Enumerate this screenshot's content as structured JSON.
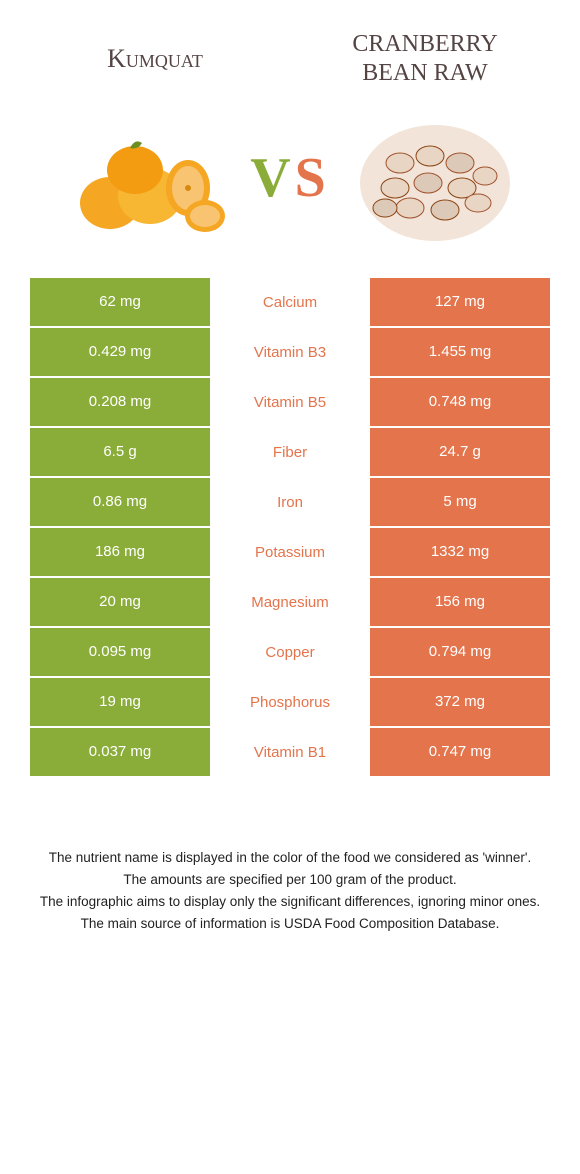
{
  "header": {
    "left_title": "Kumquat",
    "right_title": "CRANBERRY BEAN RAW",
    "vs": "VS"
  },
  "colors": {
    "left": "#8aad3a",
    "right": "#e4744c",
    "left_title": "#554444",
    "right_title": "#554444"
  },
  "rows": [
    {
      "left": "62 mg",
      "label": "Calcium",
      "right": "127 mg",
      "winner": "right"
    },
    {
      "left": "0.429 mg",
      "label": "Vitamin B3",
      "right": "1.455 mg",
      "winner": "right"
    },
    {
      "left": "0.208 mg",
      "label": "Vitamin B5",
      "right": "0.748 mg",
      "winner": "right"
    },
    {
      "left": "6.5 g",
      "label": "Fiber",
      "right": "24.7 g",
      "winner": "right"
    },
    {
      "left": "0.86 mg",
      "label": "Iron",
      "right": "5 mg",
      "winner": "right"
    },
    {
      "left": "186 mg",
      "label": "Potassium",
      "right": "1332 mg",
      "winner": "right"
    },
    {
      "left": "20 mg",
      "label": "Magnesium",
      "right": "156 mg",
      "winner": "right"
    },
    {
      "left": "0.095 mg",
      "label": "Copper",
      "right": "0.794 mg",
      "winner": "right"
    },
    {
      "left": "19 mg",
      "label": "Phosphorus",
      "right": "372 mg",
      "winner": "right"
    },
    {
      "left": "0.037 mg",
      "label": "Vitamin B1",
      "right": "0.747 mg",
      "winner": "right"
    }
  ],
  "footer": [
    "The nutrient name is displayed in the color of the food we considered as 'winner'.",
    "The amounts are specified per 100 gram of the product.",
    "The infographic aims to display only the significant differences, ignoring minor ones.",
    "The main source of information is USDA Food Composition Database."
  ]
}
